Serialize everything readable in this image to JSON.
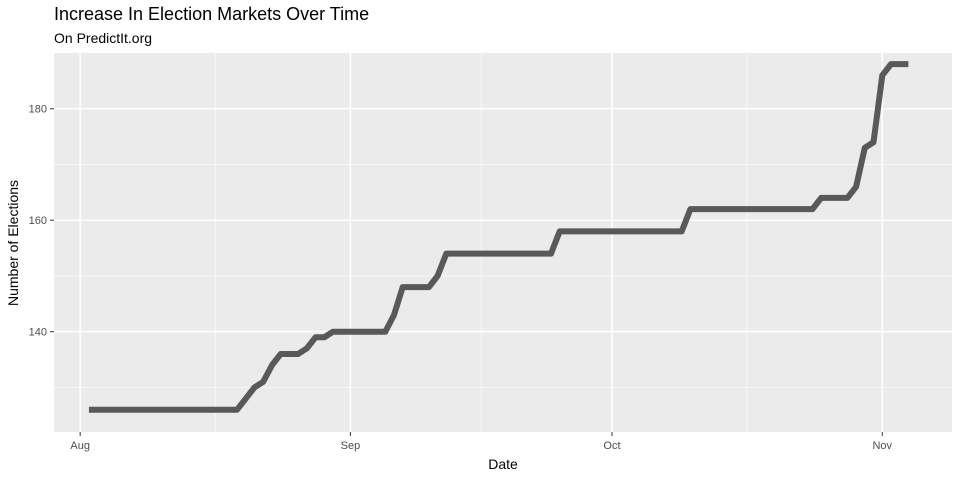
{
  "chart_data": {
    "type": "line",
    "title": "Increase In Election Markets Over Time",
    "subtitle": "On PredictIt.org",
    "xlabel": "Date",
    "ylabel": "Number of Elections",
    "x_ticks": [
      {
        "date": "2017-08-01",
        "label": "Aug"
      },
      {
        "date": "2017-09-01",
        "label": "Sep"
      },
      {
        "date": "2017-10-01",
        "label": "Oct"
      },
      {
        "date": "2017-11-01",
        "label": "Nov"
      }
    ],
    "y_ticks": [
      140,
      160,
      180
    ],
    "xlim": [
      "2017-07-29",
      "2017-11-09"
    ],
    "ylim": [
      122,
      190
    ],
    "grid": true,
    "line_color": "#595959",
    "panel_color": "#ebebeb",
    "series": [
      {
        "points": [
          [
            "2017-08-02",
            126
          ],
          [
            "2017-08-19",
            126
          ],
          [
            "2017-08-21",
            130
          ],
          [
            "2017-08-22",
            131
          ],
          [
            "2017-08-23",
            134
          ],
          [
            "2017-08-24",
            136
          ],
          [
            "2017-08-26",
            136
          ],
          [
            "2017-08-27",
            137
          ],
          [
            "2017-08-28",
            139
          ],
          [
            "2017-08-29",
            139
          ],
          [
            "2017-08-30",
            140
          ],
          [
            "2017-09-05",
            140
          ],
          [
            "2017-09-06",
            143
          ],
          [
            "2017-09-07",
            148
          ],
          [
            "2017-09-10",
            148
          ],
          [
            "2017-09-11",
            150
          ],
          [
            "2017-09-12",
            154
          ],
          [
            "2017-09-24",
            154
          ],
          [
            "2017-09-25",
            158
          ],
          [
            "2017-10-09",
            158
          ],
          [
            "2017-10-10",
            162
          ],
          [
            "2017-10-24",
            162
          ],
          [
            "2017-10-25",
            164
          ],
          [
            "2017-10-28",
            164
          ],
          [
            "2017-10-29",
            166
          ],
          [
            "2017-10-30",
            173
          ],
          [
            "2017-10-31",
            174
          ],
          [
            "2017-11-01",
            186
          ],
          [
            "2017-11-02",
            188
          ],
          [
            "2017-11-04",
            188
          ]
        ]
      }
    ]
  }
}
